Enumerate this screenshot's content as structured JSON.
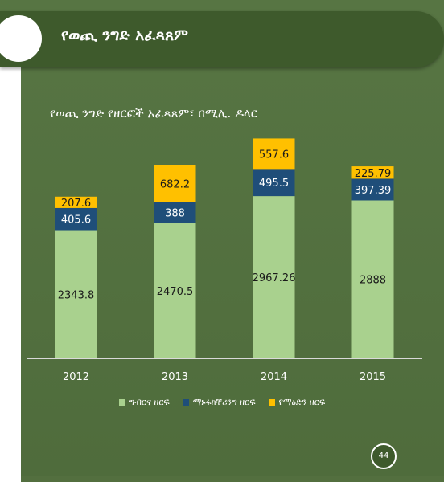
{
  "header": {
    "title": "የወጪ ንግድ አፈጻጸም"
  },
  "slide_number": "44",
  "colors": {
    "background": "#536f3f",
    "header_bar": "#3e5a2c",
    "agriculture": "#a9d18e",
    "manufacturing": "#1f4e79",
    "mining": "#ffc000"
  },
  "chart_data": {
    "type": "bar",
    "stacked": true,
    "title": "የወጪ ንግድ የዘርፎች አፈጻጸም፣ በሚሊ. ዶላር",
    "categories": [
      "2012",
      "2013",
      "2014",
      "2015"
    ],
    "series": [
      {
        "name": "ግብርና ዘርፍ",
        "values": [
          2343.8,
          2470.5,
          2967.26,
          2888
        ],
        "labels": [
          "2343.8",
          "2470.5",
          "2967.26",
          "2888"
        ],
        "color": "#a9d18e"
      },
      {
        "name": "ማኑፋክቸሪንግ ዘርፍ",
        "values": [
          405.6,
          388,
          495.5,
          397.39
        ],
        "labels": [
          "405.6",
          "388",
          "495.5",
          "397.39"
        ],
        "color": "#1f4e79"
      },
      {
        "name": "የማዕድን ዘርፍ",
        "values": [
          207.6,
          682.2,
          557.6,
          225.79
        ],
        "labels": [
          "207.6",
          "682.2",
          "557.6",
          "225.79"
        ],
        "color": "#ffc000"
      }
    ],
    "ylim": [
      0,
      4350
    ],
    "grid": false,
    "legend": "bottom"
  }
}
